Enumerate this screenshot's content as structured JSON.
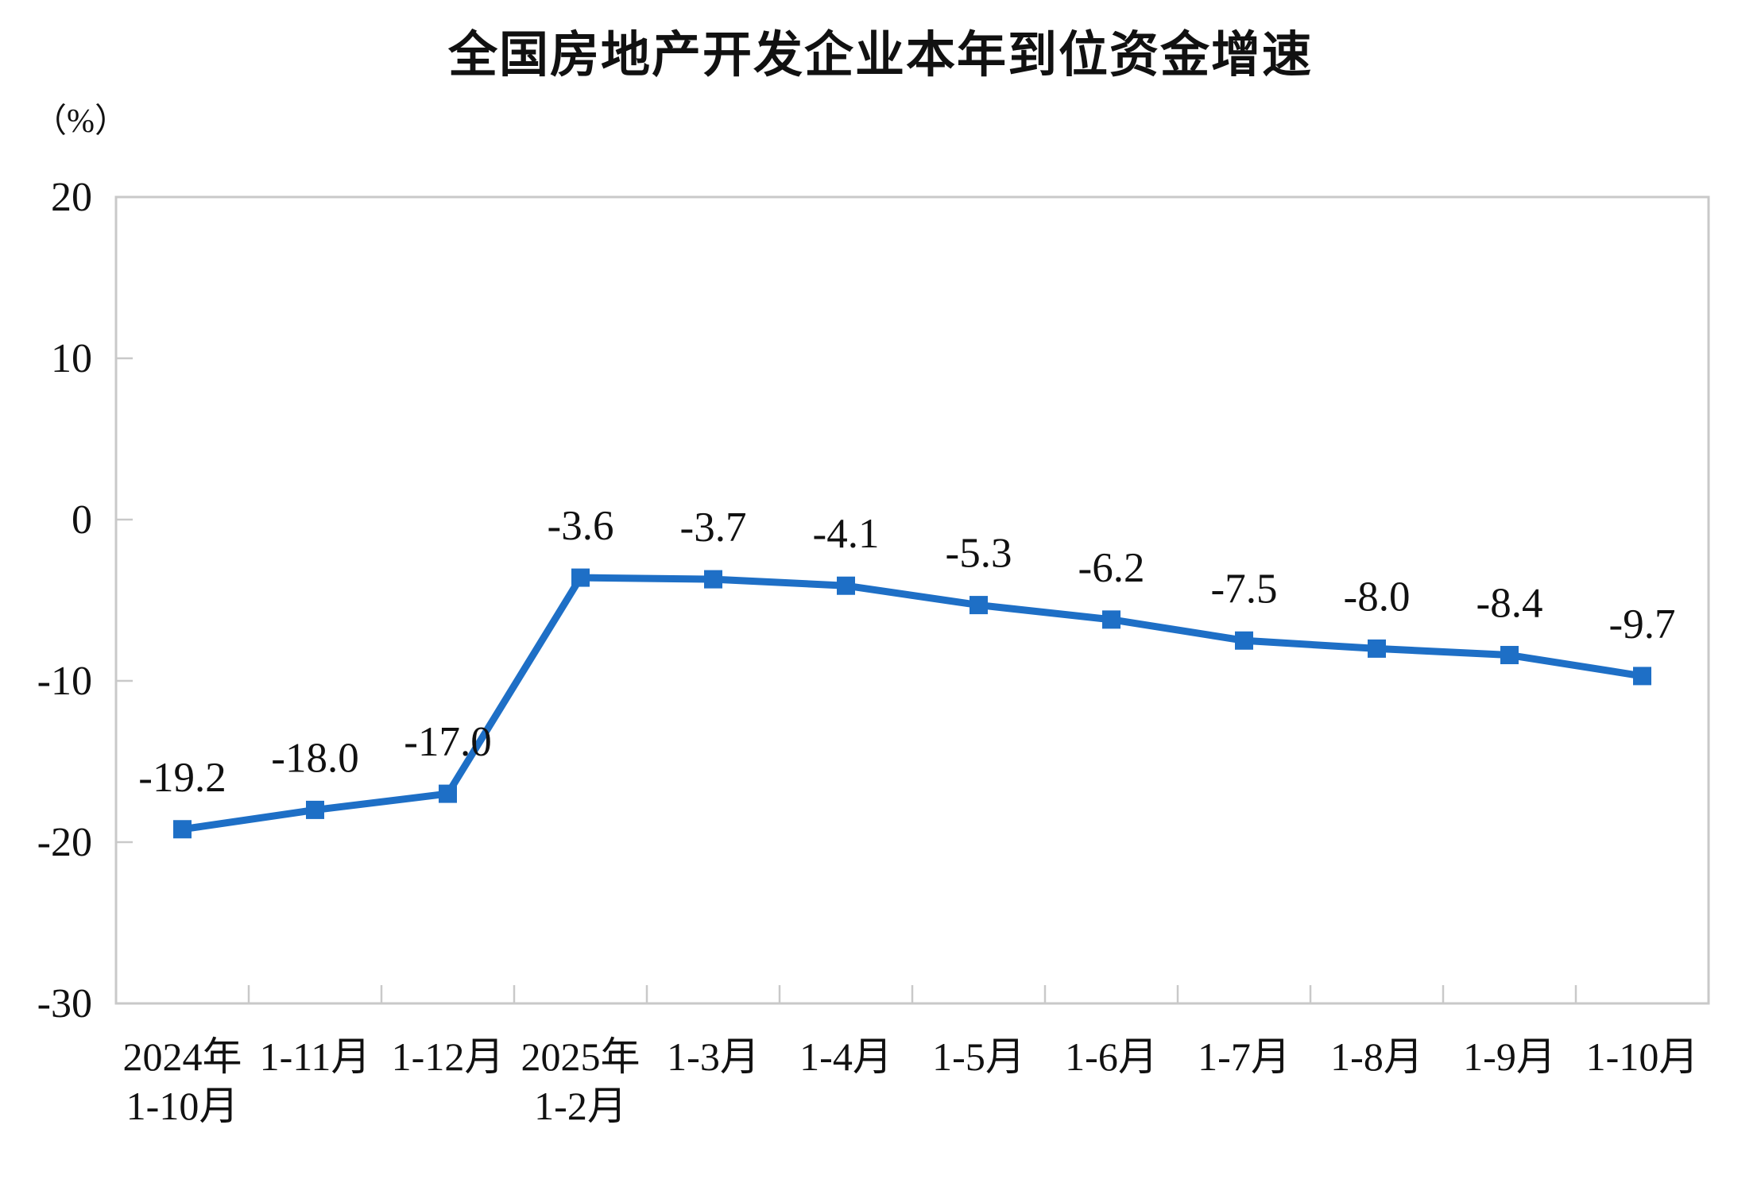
{
  "chart_data": {
    "type": "line",
    "title": "全国房地产开发企业本年到位资金增速",
    "unit": "（%）",
    "categories": [
      "2024年\n1-10月",
      "1-11月",
      "1-12月",
      "2025年\n1-2月",
      "1-3月",
      "1-4月",
      "1-5月",
      "1-6月",
      "1-7月",
      "1-8月",
      "1-9月",
      "1-10月"
    ],
    "values": [
      -19.2,
      -18.0,
      -17.0,
      -3.6,
      -3.7,
      -4.1,
      -5.3,
      -6.2,
      -7.5,
      -8.0,
      -8.4,
      -9.7
    ],
    "data_labels": [
      "-19.2",
      "-18.0",
      "-17.0",
      "-3.6",
      "-3.7",
      "-4.1",
      "-5.3",
      "-6.2",
      "-7.5",
      "-8.0",
      "-8.4",
      "-9.7"
    ],
    "y_ticks": [
      20,
      10,
      0,
      -10,
      -20,
      -30
    ],
    "ylim": [
      -30,
      20
    ],
    "grid": false,
    "legend": "none",
    "marker": "square",
    "colors": {
      "line": "#1E6FC6",
      "marker_fill": "#1E6FC6",
      "axis_border": "#C9C9C9",
      "text": "#111111"
    }
  }
}
